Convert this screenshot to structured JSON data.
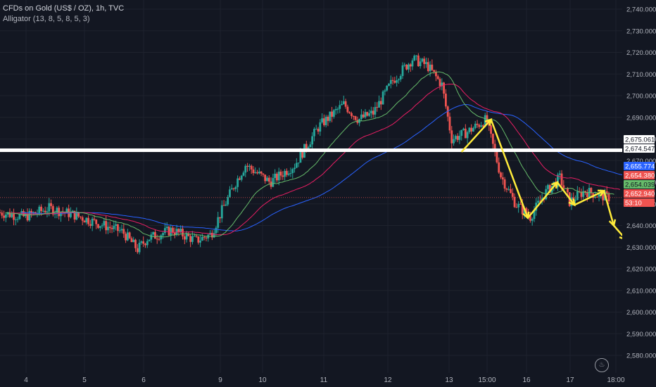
{
  "header": {
    "title": "CFDs on Gold (US$ / OZ), 1h, TVC",
    "indicator": "Alligator (13, 8, 5, 8, 5, 3)"
  },
  "colors": {
    "background": "#131722",
    "up": "#26a69a",
    "down": "#ef5350",
    "jaw": "#2962ff",
    "teeth": "#e91e63",
    "lips": "#66bb6a",
    "annotation": "#ffeb3b",
    "level_line": "#ffffff"
  },
  "chart_data": {
    "type": "candlestick",
    "timeframe": "1h",
    "y_axis": {
      "range": [
        2575,
        2745
      ],
      "ticks": [
        "2,740.000",
        "2,730.000",
        "2,720.000",
        "2,710.000",
        "2,700.000",
        "2,690.000",
        "2,680.000",
        "2,670.000",
        "2,660.000",
        "2,650.000",
        "2,640.000",
        "2,630.000",
        "2,620.000",
        "2,610.000",
        "2,600.000",
        "2,590.000",
        "2,580.000"
      ]
    },
    "x_axis": {
      "ticks": [
        "4",
        "5",
        "6",
        "9",
        "10",
        "11",
        "12",
        "13",
        "15:00",
        "16",
        "17",
        "18:00"
      ]
    },
    "price_tags": [
      {
        "label": "2,675.061",
        "value": 2675.061,
        "bg": "#ffffff",
        "fg": "#131722"
      },
      {
        "label": "2,674.547",
        "value": 2674.547,
        "bg": "#ffffff",
        "fg": "#131722"
      },
      {
        "label": "2,655.774",
        "value": 2655.774,
        "bg": "#2962ff",
        "fg": "#ffffff"
      },
      {
        "label": "2,654.380",
        "value": 2654.38,
        "bg": "#ef5350",
        "fg": "#ffffff"
      },
      {
        "label": "2,654.039",
        "value": 2654.039,
        "bg": "#66bb6a",
        "fg": "#131722"
      },
      {
        "label": "2,652.940",
        "value": 2652.94,
        "bg": "#ef5350",
        "fg": "#ffffff"
      },
      {
        "label": "53:10",
        "value": 2649.6,
        "bg": "#ef5350",
        "fg": "#ffffff"
      }
    ],
    "horizontal_level": 2674.8,
    "current_price": 2652.94,
    "price_path": [
      {
        "x": 0,
        "y": 2646
      },
      {
        "x": 0.5,
        "y": 2644
      },
      {
        "x": 1,
        "y": 2648
      },
      {
        "x": 1.5,
        "y": 2645
      },
      {
        "x": 2,
        "y": 2641
      },
      {
        "x": 2.5,
        "y": 2637
      },
      {
        "x": 2.8,
        "y": 2629
      },
      {
        "x": 3,
        "y": 2634
      },
      {
        "x": 3.5,
        "y": 2638
      },
      {
        "x": 4,
        "y": 2633
      },
      {
        "x": 4.3,
        "y": 2636
      },
      {
        "x": 4.5,
        "y": 2646
      },
      {
        "x": 4.8,
        "y": 2660
      },
      {
        "x": 5,
        "y": 2668
      },
      {
        "x": 5.5,
        "y": 2660
      },
      {
        "x": 6,
        "y": 2668
      },
      {
        "x": 6.5,
        "y": 2686
      },
      {
        "x": 7,
        "y": 2696
      },
      {
        "x": 7.3,
        "y": 2689
      },
      {
        "x": 7.6,
        "y": 2692
      },
      {
        "x": 8,
        "y": 2707
      },
      {
        "x": 8.4,
        "y": 2717
      },
      {
        "x": 8.7,
        "y": 2714
      },
      {
        "x": 9,
        "y": 2705
      },
      {
        "x": 9.2,
        "y": 2680
      },
      {
        "x": 9.5,
        "y": 2683
      },
      {
        "x": 9.9,
        "y": 2689
      },
      {
        "x": 10.2,
        "y": 2663
      },
      {
        "x": 10.5,
        "y": 2650
      },
      {
        "x": 10.8,
        "y": 2644
      },
      {
        "x": 11.1,
        "y": 2655
      },
      {
        "x": 11.4,
        "y": 2662
      },
      {
        "x": 11.6,
        "y": 2651
      },
      {
        "x": 11.9,
        "y": 2656
      },
      {
        "x": 12.2,
        "y": 2654
      },
      {
        "x": 12.4,
        "y": 2653
      }
    ],
    "alligator": {
      "lips_offset": 0.9,
      "teeth_offset": 1.9,
      "jaw_offset": 3.6
    },
    "annotations": [
      {
        "type": "zigzag",
        "points": [
          [
            9.4,
            2674
          ],
          [
            10.0,
            2689
          ],
          [
            10.75,
            2643.5
          ],
          [
            11.35,
            2660
          ],
          [
            11.7,
            2649.5
          ],
          [
            12.3,
            2656
          ],
          [
            12.5,
            2640
          ]
        ],
        "arrow_end": [
          12.75,
          2633.5
        ]
      }
    ]
  }
}
